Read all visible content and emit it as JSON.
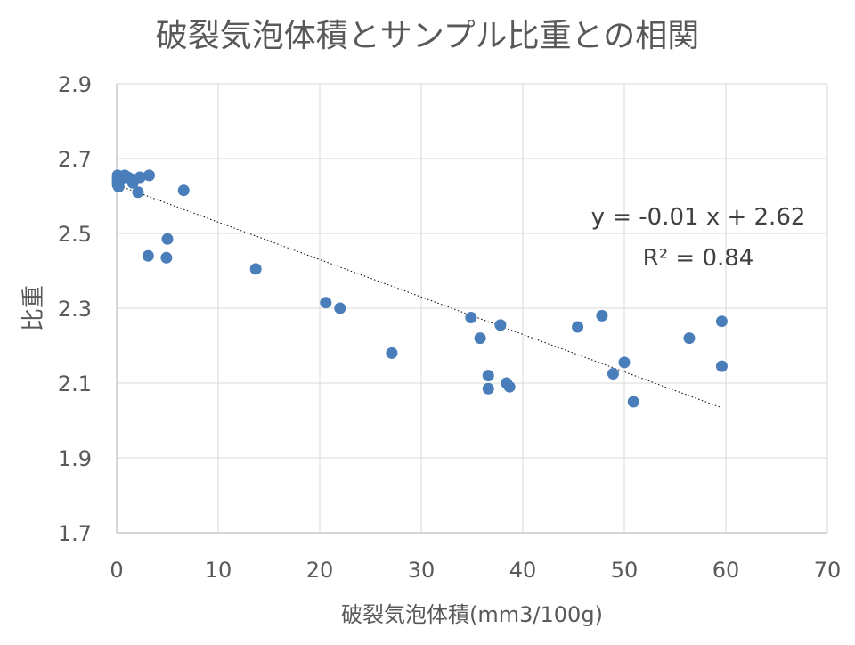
{
  "chart_data": {
    "type": "scatter",
    "title": "破裂気泡体積とサンプル比重との相関",
    "xlabel": "破裂気泡体積(mm3/100g)",
    "ylabel": "比重",
    "xlim": [
      0,
      70
    ],
    "ylim": [
      1.7,
      2.9
    ],
    "x_ticks": [
      0,
      10,
      20,
      30,
      40,
      50,
      60,
      70
    ],
    "y_ticks": [
      1.7,
      1.9,
      2.1,
      2.3,
      2.5,
      2.7,
      2.9
    ],
    "x_tick_labels": [
      "0",
      "10",
      "20",
      "30",
      "40",
      "50",
      "60",
      "70"
    ],
    "y_tick_labels": [
      "1.7",
      "1.9",
      "2.1",
      "2.3",
      "2.5",
      "2.7",
      "2.9"
    ],
    "grid": "horizontal",
    "marker_color": "#4a7ebb",
    "trendline": {
      "style": "dotted",
      "slope": -0.01,
      "intercept": 2.62,
      "x_range": [
        0,
        59.5
      ],
      "y_range": [
        2.63,
        2.035
      ],
      "equation": "y = -0.01 x + 2.62",
      "r_squared": "R² = 0.84"
    },
    "points": [
      {
        "x": 0.1,
        "y": 2.655
      },
      {
        "x": 0.1,
        "y": 2.65
      },
      {
        "x": 0.1,
        "y": 2.645
      },
      {
        "x": 0.1,
        "y": 2.64
      },
      {
        "x": 0.1,
        "y": 2.635
      },
      {
        "x": 0.1,
        "y": 2.63
      },
      {
        "x": 0.2,
        "y": 2.625
      },
      {
        "x": 0.3,
        "y": 2.64
      },
      {
        "x": 0.8,
        "y": 2.655
      },
      {
        "x": 1.1,
        "y": 2.65
      },
      {
        "x": 1.5,
        "y": 2.645
      },
      {
        "x": 1.6,
        "y": 2.635
      },
      {
        "x": 2.1,
        "y": 2.61
      },
      {
        "x": 2.3,
        "y": 2.65
      },
      {
        "x": 3.2,
        "y": 2.655
      },
      {
        "x": 6.6,
        "y": 2.615
      },
      {
        "x": 5.0,
        "y": 2.485
      },
      {
        "x": 3.1,
        "y": 2.44
      },
      {
        "x": 4.9,
        "y": 2.435
      },
      {
        "x": 13.7,
        "y": 2.405
      },
      {
        "x": 20.6,
        "y": 2.315
      },
      {
        "x": 22.0,
        "y": 2.3
      },
      {
        "x": 27.1,
        "y": 2.18
      },
      {
        "x": 34.9,
        "y": 2.275
      },
      {
        "x": 35.8,
        "y": 2.22
      },
      {
        "x": 36.6,
        "y": 2.12
      },
      {
        "x": 36.6,
        "y": 2.085
      },
      {
        "x": 37.8,
        "y": 2.255
      },
      {
        "x": 38.4,
        "y": 2.1
      },
      {
        "x": 38.7,
        "y": 2.09
      },
      {
        "x": 45.4,
        "y": 2.25
      },
      {
        "x": 47.8,
        "y": 2.28
      },
      {
        "x": 48.9,
        "y": 2.125
      },
      {
        "x": 50.0,
        "y": 2.155
      },
      {
        "x": 50.9,
        "y": 2.05
      },
      {
        "x": 56.4,
        "y": 2.22
      },
      {
        "x": 59.6,
        "y": 2.265
      },
      {
        "x": 59.6,
        "y": 2.145
      }
    ]
  }
}
